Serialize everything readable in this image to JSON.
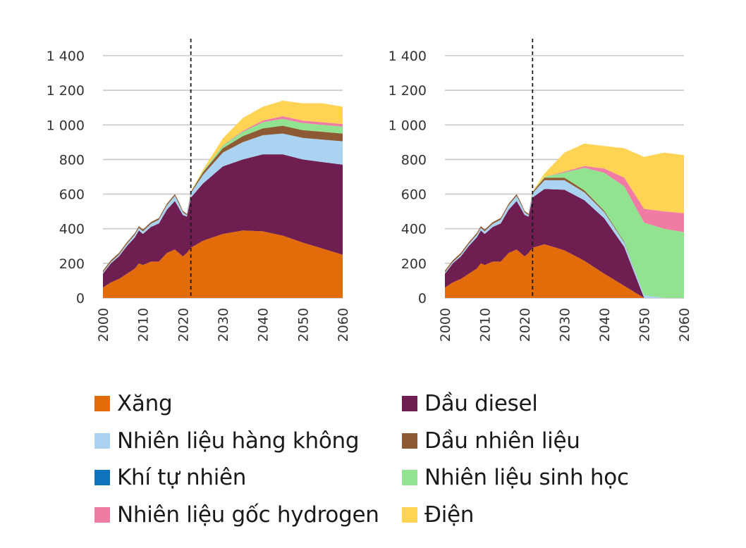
{
  "chart_data": [
    {
      "type": "area",
      "stacked": true,
      "x": [
        2000,
        2002,
        2004,
        2006,
        2008,
        2009,
        2010,
        2012,
        2014,
        2016,
        2018,
        2019,
        2020,
        2021,
        2022,
        2025,
        2030,
        2035,
        2040,
        2045,
        2050,
        2055,
        2060
      ],
      "ylim": [
        0,
        1400
      ],
      "yticks": [
        0,
        200,
        400,
        600,
        800,
        1000,
        1200,
        1400
      ],
      "ytick_labels": [
        "0",
        "200",
        "400",
        "600",
        "800",
        "1 000",
        "1 200",
        "1 400"
      ],
      "xticks": [
        2000,
        2010,
        2020,
        2030,
        2040,
        2050,
        2060
      ],
      "xtick_labels": [
        "2000",
        "2010",
        "2020",
        "2030",
        "2040",
        "2050",
        "2060"
      ],
      "divider_x": 2022,
      "series": [
        {
          "name": "Xăng",
          "values": [
            60,
            90,
            110,
            140,
            170,
            200,
            190,
            210,
            210,
            260,
            280,
            260,
            240,
            260,
            290,
            330,
            370,
            390,
            385,
            360,
            320,
            285,
            250
          ]
        },
        {
          "name": "Dầu diesel",
          "values": [
            80,
            110,
            130,
            160,
            180,
            190,
            180,
            200,
            220,
            250,
            280,
            260,
            240,
            210,
            290,
            330,
            390,
            410,
            445,
            470,
            480,
            500,
            520
          ]
        },
        {
          "name": "Nhiên liệu hàng không",
          "values": [
            8,
            8,
            10,
            12,
            15,
            15,
            15,
            18,
            22,
            25,
            30,
            25,
            15,
            8,
            25,
            50,
            80,
            100,
            110,
            120,
            125,
            130,
            135
          ]
        },
        {
          "name": "Dầu nhiên liệu",
          "values": [
            10,
            10,
            10,
            10,
            10,
            10,
            10,
            10,
            10,
            10,
            10,
            10,
            8,
            8,
            8,
            15,
            25,
            35,
            40,
            45,
            45,
            45,
            45
          ]
        },
        {
          "name": "Khí tự nhiên",
          "values": [
            0,
            0,
            0,
            0,
            0,
            0,
            0,
            0,
            0,
            0,
            0,
            0,
            0,
            0,
            0,
            0,
            0,
            0,
            0,
            0,
            0,
            0,
            0
          ]
        },
        {
          "name": "Nhiên liệu sinh học",
          "values": [
            0,
            0,
            0,
            0,
            0,
            0,
            0,
            0,
            0,
            0,
            0,
            0,
            0,
            0,
            0,
            5,
            15,
            25,
            35,
            40,
            40,
            40,
            40
          ]
        },
        {
          "name": "Nhiên liệu gốc hydrogen",
          "values": [
            0,
            0,
            0,
            0,
            0,
            0,
            0,
            0,
            0,
            0,
            0,
            0,
            0,
            0,
            0,
            0,
            2,
            5,
            10,
            15,
            15,
            15,
            15
          ]
        },
        {
          "name": "Điện",
          "values": [
            0,
            0,
            0,
            0,
            0,
            0,
            0,
            0,
            0,
            0,
            0,
            0,
            0,
            0,
            2,
            10,
            40,
            75,
            80,
            90,
            100,
            110,
            100
          ]
        }
      ]
    },
    {
      "type": "area",
      "stacked": true,
      "x": [
        2000,
        2002,
        2004,
        2006,
        2008,
        2009,
        2010,
        2012,
        2014,
        2016,
        2018,
        2019,
        2020,
        2021,
        2022,
        2025,
        2030,
        2035,
        2040,
        2045,
        2050,
        2055,
        2060
      ],
      "ylim": [
        0,
        1400
      ],
      "yticks": [
        0,
        200,
        400,
        600,
        800,
        1000,
        1200,
        1400
      ],
      "ytick_labels": [
        "0",
        "200",
        "400",
        "600",
        "800",
        "1 000",
        "1 200",
        "1 400"
      ],
      "xticks": [
        2000,
        2010,
        2020,
        2030,
        2040,
        2050,
        2060
      ],
      "xtick_labels": [
        "2000",
        "2010",
        "2020",
        "2030",
        "2040",
        "2050",
        "2060"
      ],
      "divider_x": 2022,
      "series": [
        {
          "name": "Xăng",
          "values": [
            60,
            90,
            110,
            140,
            170,
            200,
            190,
            210,
            210,
            260,
            280,
            260,
            240,
            260,
            290,
            310,
            275,
            215,
            140,
            70,
            0,
            0,
            0
          ]
        },
        {
          "name": "Dầu diesel",
          "values": [
            80,
            110,
            130,
            160,
            180,
            190,
            180,
            200,
            220,
            250,
            280,
            260,
            240,
            210,
            290,
            320,
            350,
            350,
            320,
            225,
            0,
            0,
            0
          ]
        },
        {
          "name": "Nhiên liệu hàng không",
          "values": [
            8,
            8,
            10,
            12,
            15,
            15,
            15,
            18,
            22,
            25,
            30,
            25,
            15,
            8,
            25,
            50,
            55,
            45,
            35,
            25,
            15,
            0,
            0
          ]
        },
        {
          "name": "Dầu nhiên liệu",
          "values": [
            10,
            10,
            10,
            10,
            10,
            10,
            10,
            10,
            10,
            10,
            10,
            10,
            8,
            8,
            8,
            15,
            15,
            12,
            8,
            5,
            0,
            0,
            0
          ]
        },
        {
          "name": "Khí tự nhiên",
          "values": [
            0,
            0,
            0,
            0,
            0,
            0,
            0,
            0,
            0,
            0,
            0,
            0,
            0,
            0,
            0,
            0,
            0,
            0,
            0,
            0,
            0,
            0,
            0
          ]
        },
        {
          "name": "Nhiên liệu sinh học",
          "values": [
            0,
            0,
            0,
            0,
            0,
            0,
            0,
            0,
            0,
            0,
            0,
            0,
            0,
            0,
            0,
            5,
            30,
            130,
            220,
            320,
            420,
            400,
            380
          ]
        },
        {
          "name": "Nhiên liệu gốc hydrogen",
          "values": [
            0,
            0,
            0,
            0,
            0,
            0,
            0,
            0,
            0,
            0,
            0,
            0,
            0,
            0,
            0,
            0,
            5,
            10,
            25,
            50,
            80,
            100,
            110
          ]
        },
        {
          "name": "Điện",
          "values": [
            0,
            0,
            0,
            0,
            0,
            0,
            0,
            0,
            0,
            0,
            0,
            0,
            0,
            0,
            2,
            20,
            110,
            130,
            130,
            170,
            300,
            340,
            335
          ]
        }
      ]
    }
  ],
  "legend": {
    "items": [
      {
        "label": "Xăng",
        "color": "#E36C0A"
      },
      {
        "label": "Dầu diesel",
        "color": "#6E1E51"
      },
      {
        "label": "Nhiên liệu hàng không",
        "color": "#A9D3F0"
      },
      {
        "label": "Dầu nhiên liệu",
        "color": "#8E5A33"
      },
      {
        "label": "Khí tự nhiên",
        "color": "#0F72BC"
      },
      {
        "label": "Nhiên liệu sinh học",
        "color": "#92E38F"
      },
      {
        "label": "Nhiên liệu gốc hydrogen",
        "color": "#F07CA6"
      },
      {
        "label": "Điện",
        "color": "#FFD454"
      }
    ]
  }
}
